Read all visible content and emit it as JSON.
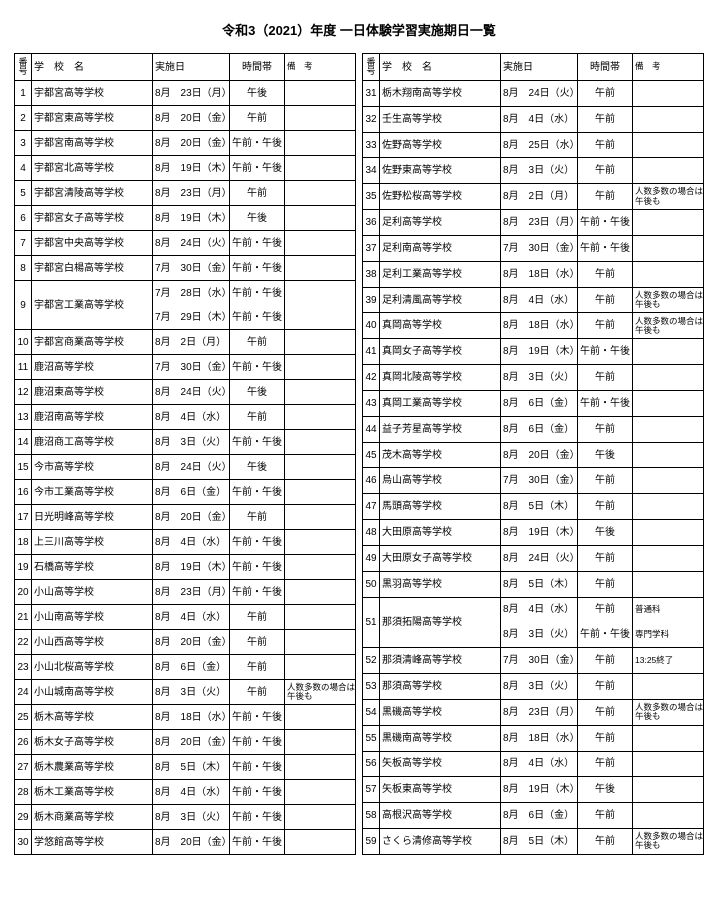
{
  "title": "令和3（2021）年度 一日体験学習実施期日一覧",
  "headers": {
    "num": "番号",
    "name": "学　校　名",
    "date": "実施日",
    "time": "時間帯",
    "note": "備　考"
  },
  "left": [
    {
      "n": 1,
      "name": "宇都宮高等学校",
      "date": "8月　23日（月）",
      "time": "午後",
      "note": ""
    },
    {
      "n": 2,
      "name": "宇都宮東高等学校",
      "date": "8月　20日（金）",
      "time": "午前",
      "note": ""
    },
    {
      "n": 3,
      "name": "宇都宮南高等学校",
      "date": "8月　20日（金）",
      "time": "午前・午後",
      "note": ""
    },
    {
      "n": 4,
      "name": "宇都宮北高等学校",
      "date": "8月　19日（木）",
      "time": "午前・午後",
      "note": ""
    },
    {
      "n": 5,
      "name": "宇都宮清陵高等学校",
      "date": "8月　23日（月）",
      "time": "午前",
      "note": ""
    },
    {
      "n": 6,
      "name": "宇都宮女子高等学校",
      "date": "8月　19日（木）",
      "time": "午後",
      "note": ""
    },
    {
      "n": 7,
      "name": "宇都宮中央高等学校",
      "date": "8月　24日（火）",
      "time": "午前・午後",
      "note": ""
    },
    {
      "n": 8,
      "name": "宇都宮白楊高等学校",
      "date": "7月　30日（金）",
      "time": "午前・午後",
      "note": ""
    },
    {
      "n": 9,
      "name": "宇都宮工業高等学校",
      "date": "7月　28日（水）",
      "time": "午前・午後",
      "note": "",
      "sub": {
        "date": "7月　29日（木）",
        "time": "午前・午後"
      }
    },
    {
      "n": 10,
      "name": "宇都宮商業高等学校",
      "date": "8月　2日（月）",
      "time": "午前",
      "note": ""
    },
    {
      "n": 11,
      "name": "鹿沼高等学校",
      "date": "7月　30日（金）",
      "time": "午前・午後",
      "note": ""
    },
    {
      "n": 12,
      "name": "鹿沼東高等学校",
      "date": "8月　24日（火）",
      "time": "午後",
      "note": ""
    },
    {
      "n": 13,
      "name": "鹿沼南高等学校",
      "date": "8月　4日（水）",
      "time": "午前",
      "note": ""
    },
    {
      "n": 14,
      "name": "鹿沼商工高等学校",
      "date": "8月　3日（火）",
      "time": "午前・午後",
      "note": ""
    },
    {
      "n": 15,
      "name": "今市高等学校",
      "date": "8月　24日（火）",
      "time": "午後",
      "note": ""
    },
    {
      "n": 16,
      "name": "今市工業高等学校",
      "date": "8月　6日（金）",
      "time": "午前・午後",
      "note": ""
    },
    {
      "n": 17,
      "name": "日光明峰高等学校",
      "date": "8月　20日（金）",
      "time": "午前",
      "note": ""
    },
    {
      "n": 18,
      "name": "上三川高等学校",
      "date": "8月　4日（水）",
      "time": "午前・午後",
      "note": ""
    },
    {
      "n": 19,
      "name": "石橋高等学校",
      "date": "8月　19日（木）",
      "time": "午前・午後",
      "note": ""
    },
    {
      "n": 20,
      "name": "小山高等学校",
      "date": "8月　23日（月）",
      "time": "午前・午後",
      "note": ""
    },
    {
      "n": 21,
      "name": "小山南高等学校",
      "date": "8月　4日（水）",
      "time": "午前",
      "note": ""
    },
    {
      "n": 22,
      "name": "小山西高等学校",
      "date": "8月　20日（金）",
      "time": "午前",
      "note": ""
    },
    {
      "n": 23,
      "name": "小山北桜高等学校",
      "date": "8月　6日（金）",
      "time": "午前",
      "note": ""
    },
    {
      "n": 24,
      "name": "小山城南高等学校",
      "date": "8月　3日（火）",
      "time": "午前",
      "note": "人数多数の場合は午後も"
    },
    {
      "n": 25,
      "name": "栃木高等学校",
      "date": "8月　18日（水）",
      "time": "午前・午後",
      "note": ""
    },
    {
      "n": 26,
      "name": "栃木女子高等学校",
      "date": "8月　20日（金）",
      "time": "午前・午後",
      "note": ""
    },
    {
      "n": 27,
      "name": "栃木農業高等学校",
      "date": "8月　5日（木）",
      "time": "午前・午後",
      "note": ""
    },
    {
      "n": 28,
      "name": "栃木工業高等学校",
      "date": "8月　4日（水）",
      "time": "午前・午後",
      "note": ""
    },
    {
      "n": 29,
      "name": "栃木商業高等学校",
      "date": "8月　3日（火）",
      "time": "午前・午後",
      "note": ""
    },
    {
      "n": 30,
      "name": "学悠館高等学校",
      "date": "8月　20日（金）",
      "time": "午前・午後",
      "note": ""
    }
  ],
  "right": [
    {
      "n": 31,
      "name": "栃木翔南高等学校",
      "date": "8月　24日（火）",
      "time": "午前",
      "note": ""
    },
    {
      "n": 32,
      "name": "壬生高等学校",
      "date": "8月　4日（水）",
      "time": "午前",
      "note": ""
    },
    {
      "n": 33,
      "name": "佐野高等学校",
      "date": "8月　25日（水）",
      "time": "午前",
      "note": ""
    },
    {
      "n": 34,
      "name": "佐野東高等学校",
      "date": "8月　3日（火）",
      "time": "午前",
      "note": ""
    },
    {
      "n": 35,
      "name": "佐野松桜高等学校",
      "date": "8月　2日（月）",
      "time": "午前",
      "note": "人数多数の場合は午後も"
    },
    {
      "n": 36,
      "name": "足利高等学校",
      "date": "8月　23日（月）",
      "time": "午前・午後",
      "note": ""
    },
    {
      "n": 37,
      "name": "足利南高等学校",
      "date": "7月　30日（金）",
      "time": "午前・午後",
      "note": ""
    },
    {
      "n": 38,
      "name": "足利工業高等学校",
      "date": "8月　18日（水）",
      "time": "午前",
      "note": ""
    },
    {
      "n": 39,
      "name": "足利清風高等学校",
      "date": "8月　4日（水）",
      "time": "午前",
      "note": "人数多数の場合は午後も"
    },
    {
      "n": 40,
      "name": "真岡高等学校",
      "date": "8月　18日（水）",
      "time": "午前",
      "note": "人数多数の場合は午後も"
    },
    {
      "n": 41,
      "name": "真岡女子高等学校",
      "date": "8月　19日（木）",
      "time": "午前・午後",
      "note": ""
    },
    {
      "n": 42,
      "name": "真岡北陵高等学校",
      "date": "8月　3日（火）",
      "time": "午前",
      "note": ""
    },
    {
      "n": 43,
      "name": "真岡工業高等学校",
      "date": "8月　6日（金）",
      "time": "午前・午後",
      "note": ""
    },
    {
      "n": 44,
      "name": "益子芳星高等学校",
      "date": "8月　6日（金）",
      "time": "午前",
      "note": ""
    },
    {
      "n": 45,
      "name": "茂木高等学校",
      "date": "8月　20日（金）",
      "time": "午後",
      "note": ""
    },
    {
      "n": 46,
      "name": "烏山高等学校",
      "date": "7月　30日（金）",
      "time": "午前",
      "note": ""
    },
    {
      "n": 47,
      "name": "馬頭高等学校",
      "date": "8月　5日（木）",
      "time": "午前",
      "note": ""
    },
    {
      "n": 48,
      "name": "大田原高等学校",
      "date": "8月　19日（木）",
      "time": "午後",
      "note": ""
    },
    {
      "n": 49,
      "name": "大田原女子高等学校",
      "date": "8月　24日（火）",
      "time": "午前",
      "note": ""
    },
    {
      "n": 50,
      "name": "黒羽高等学校",
      "date": "8月　5日（木）",
      "time": "午前",
      "note": ""
    },
    {
      "n": 51,
      "name": "那須拓陽高等学校",
      "date": "8月　4日（水）",
      "time": "午前",
      "note": "普通科",
      "sub": {
        "date": "8月　3日（火）",
        "time": "午前・午後",
        "note": "専門学科"
      }
    },
    {
      "n": 52,
      "name": "那須清峰高等学校",
      "date": "7月　30日（金）",
      "time": "午前",
      "note": "13:25終了"
    },
    {
      "n": 53,
      "name": "那須高等学校",
      "date": "8月　3日（火）",
      "time": "午前",
      "note": ""
    },
    {
      "n": 54,
      "name": "黒磯高等学校",
      "date": "8月　23日（月）",
      "time": "午前",
      "note": "人数多数の場合は午後も"
    },
    {
      "n": 55,
      "name": "黒磯南高等学校",
      "date": "8月　18日（水）",
      "time": "午前",
      "note": ""
    },
    {
      "n": 56,
      "name": "矢板高等学校",
      "date": "8月　4日（水）",
      "time": "午前",
      "note": ""
    },
    {
      "n": 57,
      "name": "矢板東高等学校",
      "date": "8月　19日（木）",
      "time": "午後",
      "note": ""
    },
    {
      "n": 58,
      "name": "高根沢高等学校",
      "date": "8月　6日（金）",
      "time": "午前",
      "note": ""
    },
    {
      "n": 59,
      "name": "さくら清修高等学校",
      "date": "8月　5日（木）",
      "time": "午前",
      "note": "人数多数の場合は午後も"
    }
  ]
}
